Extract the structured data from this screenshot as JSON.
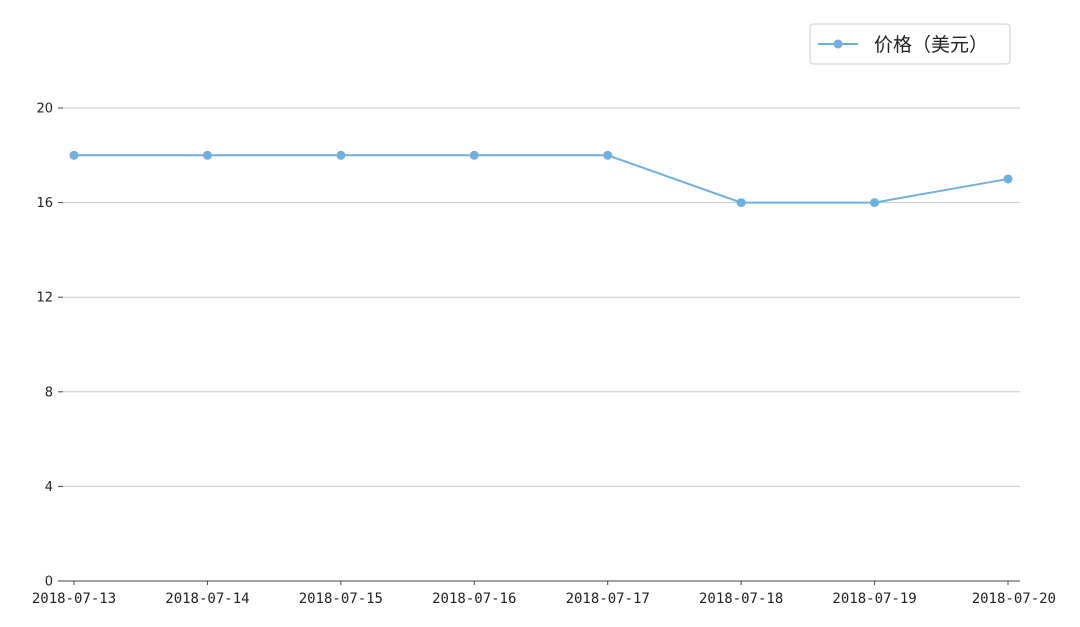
{
  "chart_data": {
    "type": "line",
    "categories": [
      "2018-07-13",
      "2018-07-14",
      "2018-07-15",
      "2018-07-16",
      "2018-07-17",
      "2018-07-18",
      "2018-07-19",
      "2018-07-20"
    ],
    "series": [
      {
        "name": "价格（美元）",
        "values": [
          18,
          18,
          18,
          18,
          18,
          16,
          16,
          17
        ],
        "color": "#6fb1dc"
      }
    ],
    "yticks": [
      "0",
      "4",
      "8",
      "12",
      "16",
      "20"
    ],
    "ylim": [
      0,
      20
    ],
    "grid": "horizontal",
    "legend_position": "top-right",
    "title": "",
    "xlabel": "",
    "ylabel": ""
  }
}
